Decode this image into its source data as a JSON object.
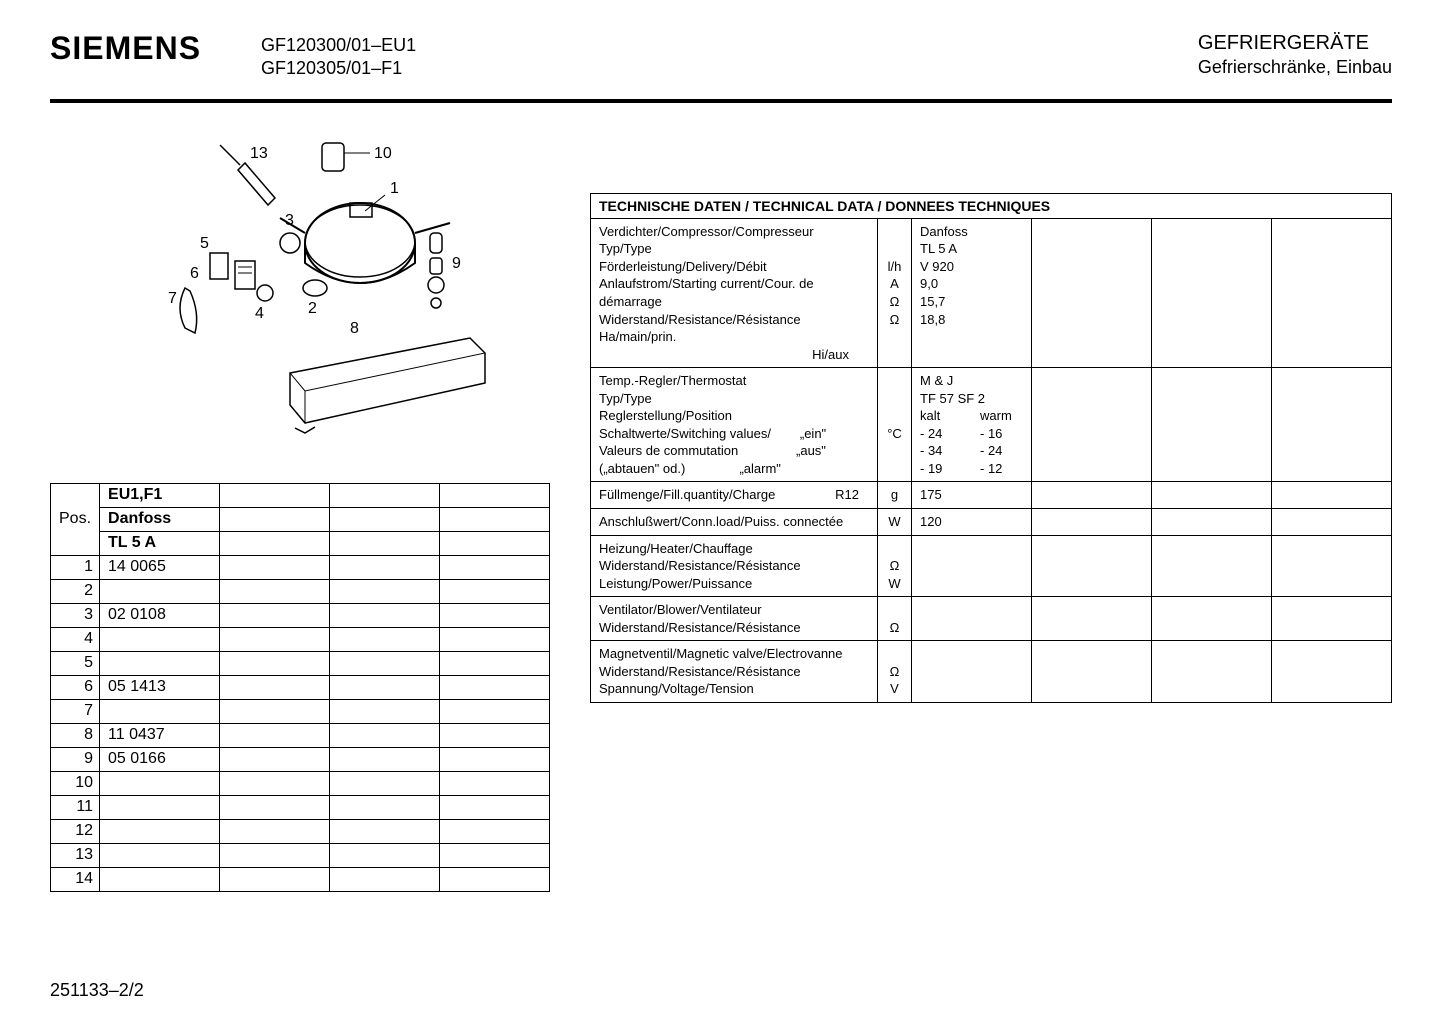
{
  "header": {
    "brand": "SIEMENS",
    "model_line1": "GF120300/01–EU1",
    "model_line2": "GF120305/01–F1",
    "right_line1": "GEFRIERGERÄTE",
    "right_line2": "Gefrierschränke, Einbau"
  },
  "parts": {
    "header_row1": "EU1,F1",
    "header_row2": "Danfoss",
    "header_row3": "TL 5 A",
    "pos_label": "Pos.",
    "rows": [
      {
        "pos": "1",
        "val": "14 0065"
      },
      {
        "pos": "2",
        "val": ""
      },
      {
        "pos": "3",
        "val": "02 0108"
      },
      {
        "pos": "4",
        "val": ""
      },
      {
        "pos": "5",
        "val": ""
      },
      {
        "pos": "6",
        "val": "05 1413"
      },
      {
        "pos": "7",
        "val": ""
      },
      {
        "pos": "8",
        "val": "11 0437"
      },
      {
        "pos": "9",
        "val": "05 0166"
      },
      {
        "pos": "10",
        "val": ""
      },
      {
        "pos": "11",
        "val": ""
      },
      {
        "pos": "12",
        "val": ""
      },
      {
        "pos": "13",
        "val": ""
      },
      {
        "pos": "14",
        "val": ""
      }
    ]
  },
  "tech": {
    "title": "TECHNISCHE DATEN / TECHNICAL DATA / DONNEES TECHNIQUES",
    "compressor": {
      "l1": "Verdichter/Compressor/Compresseur",
      "l2": "Typ/Type",
      "l3": "Förderleistung/Delivery/Débit",
      "l4": "Anlaufstrom/Starting current/Cour. de démarrage",
      "l5": "Widerstand/Resistance/Résistance    Ha/main/prin.",
      "l6": "Hi/aux",
      "u3": "l/h",
      "u4": "A",
      "u5": "Ω",
      "u6": "Ω",
      "v1": "Danfoss",
      "v2": "TL 5 A",
      "v3": "V 920",
      "v4": "9,0",
      "v5": "15,7",
      "v6": "18,8"
    },
    "thermostat": {
      "l1": "Temp.-Regler/Thermostat",
      "l2": "Typ/Type",
      "l3": "Reglerstellung/Position",
      "l4": "Schaltwerte/Switching values/        „ein\"",
      "l5": "Valeurs de commutation                „aus\"",
      "l6": "(„abtauen\" od.)               „alarm\"",
      "unit": "°C",
      "v1": "M & J",
      "v2": "TF 57 SF 2",
      "v3a": "kalt",
      "v3b": "warm",
      "v4a": "- 24",
      "v4b": "- 16",
      "v5a": "- 34",
      "v5b": "- 24",
      "v6a": "- 19",
      "v6b": "- 12"
    },
    "fill": {
      "label": "Füllmenge/Fill.quantity/Charge",
      "ref": "R12",
      "unit": "g",
      "val": "175"
    },
    "conn": {
      "label": "Anschlußwert/Conn.load/Puiss. connectée",
      "unit": "W",
      "val": "120"
    },
    "heater": {
      "l1": "Heizung/Heater/Chauffage",
      "l2": "Widerstand/Resistance/Résistance",
      "l3": "Leistung/Power/Puissance",
      "u2": "Ω",
      "u3": "W"
    },
    "blower": {
      "l1": "Ventilator/Blower/Ventilateur",
      "l2": "Widerstand/Resistance/Résistance",
      "u2": "Ω"
    },
    "valve": {
      "l1": "Magnetventil/Magnetic valve/Electrovanne",
      "l2": "Widerstand/Resistance/Résistance",
      "l3": "Spannung/Voltage/Tension",
      "u2": "Ω",
      "u3": "V"
    }
  },
  "diagram": {
    "labels": [
      "1",
      "2",
      "3",
      "4",
      "5",
      "6",
      "7",
      "8",
      "9",
      "10",
      "13"
    ]
  },
  "page_num": "251133–2/2"
}
